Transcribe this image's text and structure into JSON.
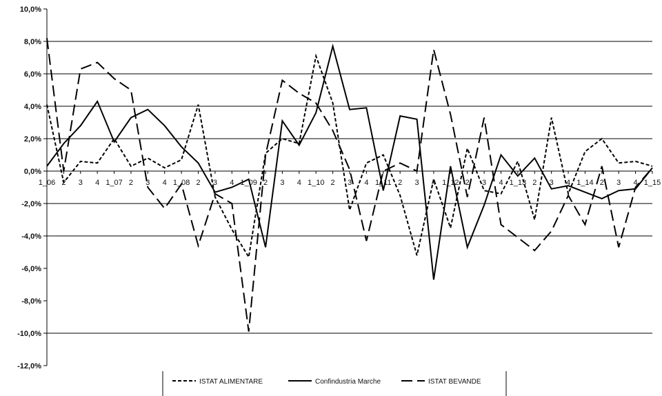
{
  "chart_data": {
    "type": "line",
    "title": "",
    "xlabel": "",
    "ylabel": "",
    "ylim": [
      -12,
      10
    ],
    "yticks": [
      "10,0%",
      "8,0%",
      "6,0%",
      "4,0%",
      "2,0%",
      "0,0%",
      "-2,0%",
      "-4,0%",
      "-6,0%",
      "-8,0%",
      "-10,0%",
      "-12,0%"
    ],
    "ytick_values": [
      10,
      8,
      6,
      4,
      2,
      0,
      -2,
      -4,
      -6,
      -8,
      -10,
      -12
    ],
    "grid_lines": [
      8,
      6,
      4,
      2,
      0,
      -2,
      -4,
      -10
    ],
    "categories": [
      "1_06",
      "2",
      "3",
      "4",
      "1_07",
      "2",
      "3",
      "4",
      "1_08",
      "2",
      "3",
      "4",
      "1_09",
      "2",
      "3",
      "4",
      "1_10",
      "2",
      "3",
      "4",
      "1_11",
      "2",
      "3",
      "4",
      "1_12",
      "2",
      "3",
      "4",
      "1_13",
      "2",
      "3",
      "4",
      "1_14",
      "2",
      "3",
      "4",
      "1_15"
    ],
    "legend_position": "bottom",
    "series": [
      {
        "name": "ISTAT ALIMENTARE",
        "dash": "short",
        "values": [
          4.1,
          -0.7,
          0.6,
          0.5,
          2.0,
          0.3,
          0.8,
          0.2,
          0.7,
          4.1,
          -1.6,
          -3.6,
          -5.3,
          1.1,
          2.0,
          1.7,
          7.1,
          4.2,
          -2.4,
          0.5,
          1.0,
          -1.5,
          -5.2,
          -0.5,
          -3.5,
          1.4,
          -1.2,
          -1.4,
          0.6,
          -3.0,
          3.3,
          -1.4,
          1.2,
          2.0,
          0.5,
          0.6,
          0.3
        ]
      },
      {
        "name": "Confindustria Marche",
        "dash": "solid",
        "values": [
          0.3,
          1.7,
          2.8,
          4.3,
          1.8,
          3.3,
          3.8,
          2.8,
          1.5,
          0.5,
          -1.3,
          -1.0,
          -0.5,
          -4.7,
          3.1,
          1.6,
          3.6,
          7.7,
          3.8,
          3.9,
          -1.2,
          3.4,
          3.2,
          -6.7,
          0.3,
          -4.7,
          -2.1,
          1.0,
          -0.3,
          0.8,
          -1.1,
          -0.9,
          -1.3,
          -1.7,
          -1.2,
          -1.1,
          0.2
        ]
      },
      {
        "name": "ISTAT BEVANDE",
        "dash": "long",
        "values": [
          8.2,
          0.0,
          6.3,
          6.7,
          5.7,
          5.0,
          -1.0,
          -2.3,
          -0.8,
          -4.6,
          -1.4,
          -2.0,
          -9.9,
          1.0,
          5.6,
          4.8,
          4.2,
          2.5,
          0.1,
          -4.3,
          0.0,
          0.5,
          0.0,
          7.5,
          3.5,
          -1.6,
          3.3,
          -3.3,
          -4.1,
          -4.9,
          -3.7,
          -1.5,
          -3.3,
          0.3,
          -4.7,
          -1.0,
          0.2
        ]
      }
    ]
  }
}
